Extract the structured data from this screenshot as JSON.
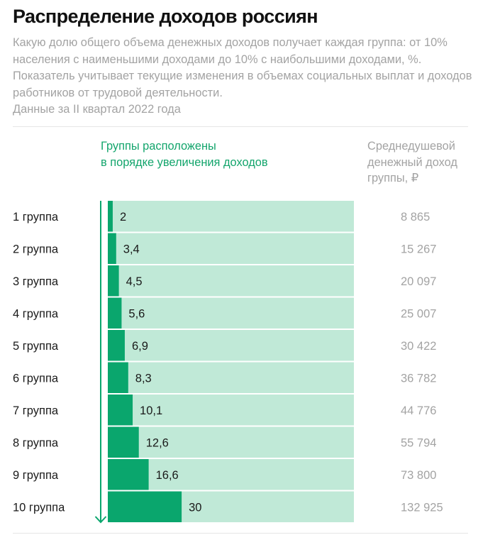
{
  "header": {
    "title": "Распределение доходов россиян",
    "description": "Какую долю общего объема денежных доходов получает каждая группа: от 10% населения с наименьшими доходами до 10% с наибольшими доходами, %. Показатель учитывает текущие изменения в объемах социальных выплат и доходов работников от трудовой деятельности.",
    "period": "Данные за II квартал 2022 года"
  },
  "colors": {
    "bar": "#0aa66d",
    "track": "#c0e9d7",
    "accent_text": "#13a56c",
    "muted_text": "#a3a3a3"
  },
  "chart_data": {
    "type": "bar",
    "orientation": "horizontal",
    "title": "Распределение доходов россиян",
    "subtitle": "Данные за II квартал 2022 года",
    "axis_note": [
      "Группы расположены",
      "в порядке увеличения доходов"
    ],
    "secondary_column_header": [
      "Среднедушевой",
      "денежный доход",
      "группы, ₽"
    ],
    "categories": [
      "1 группа",
      "2 группа",
      "3 группа",
      "4 группа",
      "5 группа",
      "6 группа",
      "7 группа",
      "8 группа",
      "9 группа",
      "10 группа"
    ],
    "values": [
      2,
      3.4,
      4.5,
      5.6,
      6.9,
      8.3,
      10.1,
      12.6,
      16.6,
      30
    ],
    "value_labels": [
      "2",
      "3,4",
      "4,5",
      "5,6",
      "6,9",
      "8,3",
      "10,1",
      "12,6",
      "16,6",
      "30"
    ],
    "unit": "%",
    "xlim": [
      0,
      100
    ],
    "avg_income_rub": [
      8865,
      15267,
      20097,
      25007,
      30422,
      36782,
      44776,
      55794,
      73800,
      132925
    ],
    "avg_income_labels": [
      "8 865",
      "15 267",
      "20 097",
      "25 007",
      "30 422",
      "36 782",
      "44 776",
      "55 794",
      "73 800",
      "132 925"
    ],
    "grid": false,
    "legend": "none"
  }
}
